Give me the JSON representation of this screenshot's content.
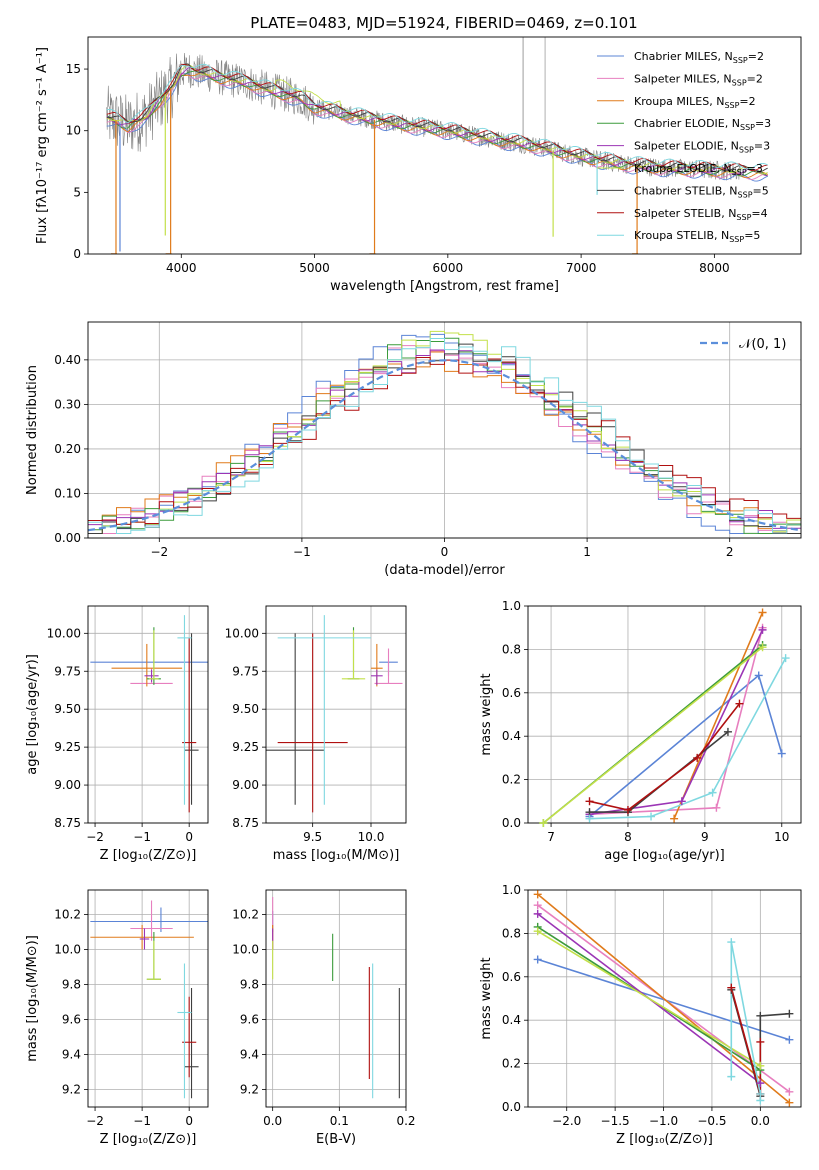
{
  "figure": {
    "title": "PLATE=0483, MJD=51924, FIBERID=0469, z=0.101"
  },
  "models": [
    {
      "name": "Chabrier MILES",
      "nssp": "2",
      "color": "#5b84d6"
    },
    {
      "name": "Salpeter MILES",
      "nssp": "2",
      "color": "#e77fbf"
    },
    {
      "name": "Kroupa MILES",
      "nssp": "2",
      "color": "#e07b1b"
    },
    {
      "name": "Chabrier ELODIE",
      "nssp": "3",
      "color": "#3c9b3c"
    },
    {
      "name": "Salpeter ELODIE",
      "nssp": "3",
      "color": "#9b35b5"
    },
    {
      "name": "Kroupa ELODIE",
      "nssp": "3",
      "color": "#c3e04a"
    },
    {
      "name": "Chabrier STELIB",
      "nssp": "5",
      "color": "#3f3f3f"
    },
    {
      "name": "Salpeter STELIB",
      "nssp": "4",
      "color": "#b01010"
    },
    {
      "name": "Kroupa STELIB",
      "nssp": "5",
      "color": "#7fd8e0"
    }
  ],
  "chart_data": [
    {
      "id": "spectrum",
      "type": "line",
      "title": "PLATE=0483, MJD=51924, FIBERID=0469, z=0.101",
      "xlabel": "wavelength [Angstrom, rest frame]",
      "ylabel": "Flux [fλ10⁻¹⁷ erg cm⁻² s⁻¹ A⁻¹]",
      "xlim": [
        3300,
        8650
      ],
      "ylim": [
        0,
        17.6
      ],
      "xticks": [
        4000,
        5000,
        6000,
        7000,
        8000
      ],
      "yticks": [
        0,
        5,
        10,
        15
      ],
      "legend": "upper right",
      "data_color": "#808080",
      "continuum": {
        "x": [
          3440,
          3500,
          3560,
          3600,
          3650,
          3700,
          3750,
          3800,
          3850,
          3900,
          3950,
          4000,
          4050,
          4100,
          4200,
          4300,
          4400,
          4500,
          4600,
          4700,
          4800,
          4900,
          5000,
          5200,
          5400,
          5600,
          5800,
          6000,
          6200,
          6400,
          6600,
          6800,
          7000,
          7200,
          7400,
          7600,
          7800,
          8000,
          8200,
          8400
        ],
        "y": [
          11.1,
          10.9,
          10.6,
          10.4,
          10.7,
          10.9,
          11.3,
          12.0,
          12.6,
          13.2,
          13.8,
          14.8,
          15.0,
          14.8,
          14.6,
          14.3,
          14.1,
          13.9,
          13.5,
          13.2,
          12.9,
          12.6,
          11.9,
          11.4,
          11.0,
          10.6,
          10.3,
          10.0,
          9.6,
          9.2,
          8.9,
          8.4,
          7.9,
          7.5,
          7.2,
          7.0,
          6.9,
          6.8,
          6.7,
          6.6
        ]
      },
      "dips": [
        {
          "model": 2,
          "x": 3510,
          "to": 0.0
        },
        {
          "model": 0,
          "x": 3540,
          "to": 0.2
        },
        {
          "model": 5,
          "x": 3880,
          "to": 1.5
        },
        {
          "model": 2,
          "x": 3920,
          "to": 0.0
        },
        {
          "model": 2,
          "x": 5450,
          "to": 0.0
        },
        {
          "model": 5,
          "x": 6790,
          "to": 1.4
        },
        {
          "model": 8,
          "x": 7120,
          "to": 4.8
        },
        {
          "model": 2,
          "x": 7420,
          "to": 0.0
        }
      ]
    },
    {
      "id": "residuals",
      "type": "line",
      "xlabel": "(data-model)/error",
      "ylabel": "Normed distribution",
      "xlim": [
        -2.5,
        2.5
      ],
      "ylim": [
        0,
        0.485
      ],
      "xticks": [
        -2,
        -1,
        0,
        1,
        2
      ],
      "yticks": [
        0.0,
        0.1,
        0.2,
        0.3,
        0.4
      ],
      "grid": true,
      "legend": "upper right",
      "gaussian": {
        "label": "𝒩(0, 1)",
        "mean": 0,
        "sigma": 1,
        "color": "#5b8fdb"
      },
      "bin_width": 0.1
    },
    {
      "id": "age-vs-Z",
      "type": "scatter",
      "xlabel": "Z [log₁₀(Z/Z⊙)]",
      "ylabel": "age  [log₁₀(age/yr)]",
      "xlim": [
        -2.15,
        0.4
      ],
      "ylim": [
        8.75,
        10.18
      ],
      "xticks": [
        -2,
        -1,
        0
      ],
      "yticks": [
        8.75,
        9.0,
        9.25,
        9.5,
        9.75,
        10.0
      ],
      "points": [
        {
          "model": 0,
          "x": -0.6,
          "y": 9.81,
          "xerr": 1.5,
          "ylo": 9.81,
          "yhi": 9.81
        },
        {
          "model": 1,
          "x": -0.8,
          "y": 9.67,
          "xerr": 0.45,
          "ylo": 9.67,
          "yhi": 9.77
        },
        {
          "model": 2,
          "x": -0.9,
          "y": 9.77,
          "xerr": 0.75,
          "ylo": 9.65,
          "yhi": 9.93
        },
        {
          "model": 3,
          "x": -0.75,
          "y": 9.7,
          "xerr": 0.15,
          "ylo": 9.66,
          "yhi": 10.04
        },
        {
          "model": 4,
          "x": -0.8,
          "y": 9.72,
          "xerr": 0.15,
          "ylo": 9.68,
          "yhi": 9.76
        },
        {
          "model": 5,
          "x": -0.75,
          "y": 9.7,
          "xerr": 0.1,
          "ylo": 9.7,
          "yhi": 10.02
        },
        {
          "model": 6,
          "x": 0.05,
          "y": 9.23,
          "xerr": 0.15,
          "ylo": 8.87,
          "yhi": 10.0
        },
        {
          "model": 7,
          "x": 0.0,
          "y": 9.28,
          "xerr": 0.15,
          "ylo": 8.82,
          "yhi": 9.97
        },
        {
          "model": 8,
          "x": -0.1,
          "y": 9.97,
          "xerr": 0.15,
          "ylo": 8.87,
          "yhi": 10.12
        }
      ]
    },
    {
      "id": "age-vs-mass",
      "type": "scatter",
      "xlabel": "mass [log₁₀(M/M⊙)]",
      "ylabel": "",
      "xlim": [
        9.1,
        10.3
      ],
      "ylim": [
        8.75,
        10.18
      ],
      "xticks": [
        9.5,
        10.0
      ],
      "yticks": [
        8.75,
        9.0,
        9.25,
        9.5,
        9.75,
        10.0
      ],
      "points": [
        {
          "model": 0,
          "x": 10.15,
          "y": 9.81,
          "xerr": 0.08,
          "ylo": 9.72,
          "yhi": 9.81
        },
        {
          "model": 1,
          "x": 10.15,
          "y": 9.67,
          "xerr": 0.12,
          "ylo": 9.67,
          "yhi": 9.9
        },
        {
          "model": 2,
          "x": 10.05,
          "y": 9.77,
          "xerr": 0.05,
          "ylo": 9.65,
          "yhi": 9.93
        },
        {
          "model": 3,
          "x": 9.85,
          "y": 9.7,
          "xerr": 0.05,
          "ylo": 9.7,
          "yhi": 10.04
        },
        {
          "model": 4,
          "x": 10.05,
          "y": 9.72,
          "xerr": 0.05,
          "ylo": 9.66,
          "yhi": 9.76
        },
        {
          "model": 5,
          "x": 9.85,
          "y": 9.7,
          "xerr": 0.1,
          "ylo": 9.7,
          "yhi": 10.02
        },
        {
          "model": 6,
          "x": 9.35,
          "y": 9.23,
          "xerr": 0.25,
          "ylo": 8.87,
          "yhi": 10.0
        },
        {
          "model": 7,
          "x": 9.5,
          "y": 9.28,
          "xerr": 0.3,
          "ylo": 8.82,
          "yhi": 10.0
        },
        {
          "model": 8,
          "x": 9.6,
          "y": 9.97,
          "xerr": 0.4,
          "ylo": 8.87,
          "yhi": 10.12
        }
      ]
    },
    {
      "id": "massweight-vs-age",
      "type": "line",
      "xlabel": "age  [log₁₀(age/yr)]",
      "ylabel": "mass weight",
      "xlim": [
        6.7,
        10.25
      ],
      "ylim": [
        0,
        1.0
      ],
      "xticks": [
        7,
        8,
        9,
        10
      ],
      "yticks": [
        0.0,
        0.2,
        0.4,
        0.6,
        0.8,
        1.0
      ],
      "grid": true,
      "series": [
        {
          "model": 0,
          "x": [
            7.5,
            9.7,
            10.0
          ],
          "y": [
            0.03,
            0.68,
            0.32
          ]
        },
        {
          "model": 1,
          "x": [
            7.5,
            9.15,
            9.75
          ],
          "y": [
            0.04,
            0.07,
            0.9
          ]
        },
        {
          "model": 2,
          "x": [
            8.6,
            9.75
          ],
          "y": [
            0.02,
            0.97
          ]
        },
        {
          "model": 3,
          "x": [
            6.9,
            9.75
          ],
          "y": [
            0.0,
            0.82
          ]
        },
        {
          "model": 4,
          "x": [
            7.5,
            8.7,
            9.75
          ],
          "y": [
            0.04,
            0.1,
            0.89
          ]
        },
        {
          "model": 5,
          "x": [
            6.9,
            9.75
          ],
          "y": [
            0.0,
            0.81
          ]
        },
        {
          "model": 6,
          "x": [
            7.5,
            8.0,
            9.3
          ],
          "y": [
            0.05,
            0.05,
            0.42
          ]
        },
        {
          "model": 7,
          "x": [
            7.5,
            8.0,
            8.9,
            9.45
          ],
          "y": [
            0.1,
            0.06,
            0.3,
            0.55
          ]
        },
        {
          "model": 8,
          "x": [
            7.5,
            8.3,
            9.1,
            10.05
          ],
          "y": [
            0.02,
            0.03,
            0.14,
            0.76
          ]
        }
      ]
    },
    {
      "id": "mass-vs-Z",
      "type": "scatter",
      "xlabel": "Z [log₁₀(Z/Z⊙)]",
      "ylabel": "mass [log₁₀(M/M⊙)]",
      "xlim": [
        -2.15,
        0.4
      ],
      "ylim": [
        9.1,
        10.34
      ],
      "xticks": [
        -2,
        -1,
        0
      ],
      "yticks": [
        9.2,
        9.4,
        9.6,
        9.8,
        10.0,
        10.2
      ],
      "points": [
        {
          "model": 0,
          "x": -0.6,
          "y": 10.16,
          "xerr": 1.5,
          "ylo": 10.1,
          "yhi": 10.24
        },
        {
          "model": 1,
          "x": -0.8,
          "y": 10.12,
          "xerr": 0.45,
          "ylo": 10.05,
          "yhi": 10.28
        },
        {
          "model": 2,
          "x": -1.0,
          "y": 10.07,
          "xerr": 1.1,
          "ylo": 10.0,
          "yhi": 10.14
        },
        {
          "model": 3,
          "x": -0.75,
          "y": 9.83,
          "xerr": 0.15,
          "ylo": 9.83,
          "yhi": 10.1
        },
        {
          "model": 4,
          "x": -0.95,
          "y": 10.06,
          "xerr": 0.1,
          "ylo": 10.0,
          "yhi": 10.12
        },
        {
          "model": 5,
          "x": -0.75,
          "y": 9.83,
          "xerr": 0.15,
          "ylo": 9.83,
          "yhi": 10.05
        },
        {
          "model": 6,
          "x": 0.05,
          "y": 9.33,
          "xerr": 0.15,
          "ylo": 9.15,
          "yhi": 9.78
        },
        {
          "model": 7,
          "x": 0.0,
          "y": 9.47,
          "xerr": 0.15,
          "ylo": 9.27,
          "yhi": 9.73
        },
        {
          "model": 8,
          "x": -0.1,
          "y": 9.64,
          "xerr": 0.15,
          "ylo": 9.15,
          "yhi": 9.92
        }
      ]
    },
    {
      "id": "mass-vs-EBV",
      "type": "scatter",
      "xlabel": "E(B-V)",
      "ylabel": "",
      "xlim": [
        -0.01,
        0.2
      ],
      "ylim": [
        9.1,
        10.34
      ],
      "xticks": [
        0.0,
        0.1,
        0.2
      ],
      "yticks": [
        9.2,
        9.4,
        9.6,
        9.8,
        10.0,
        10.2
      ],
      "points": [
        {
          "model": 0,
          "x": 0.0,
          "ylo": 10.1,
          "yhi": 10.22
        },
        {
          "model": 1,
          "x": 0.0,
          "ylo": 10.05,
          "yhi": 10.3
        },
        {
          "model": 2,
          "x": 0.0,
          "ylo": 10.0,
          "yhi": 10.14
        },
        {
          "model": 3,
          "x": 0.09,
          "ylo": 9.82,
          "yhi": 10.09
        },
        {
          "model": 4,
          "x": 0.0,
          "ylo": 10.0,
          "yhi": 10.12
        },
        {
          "model": 5,
          "x": 0.0,
          "ylo": 9.83,
          "yhi": 10.05
        },
        {
          "model": 6,
          "x": 0.19,
          "ylo": 9.15,
          "yhi": 9.78
        },
        {
          "model": 7,
          "x": 0.145,
          "ylo": 9.26,
          "yhi": 9.9
        },
        {
          "model": 8,
          "x": 0.15,
          "ylo": 9.15,
          "yhi": 9.92
        }
      ]
    },
    {
      "id": "massweight-vs-Z",
      "type": "line",
      "xlabel": "Z [log₁₀(Z/Z⊙)]",
      "ylabel": "mass weight",
      "xlim": [
        -2.4,
        0.42
      ],
      "ylim": [
        0,
        1.0
      ],
      "xticks": [
        -2.0,
        -1.5,
        -1.0,
        -0.5,
        0.0
      ],
      "yticks": [
        0.0,
        0.2,
        0.4,
        0.6,
        0.8,
        1.0
      ],
      "grid": true,
      "series": [
        {
          "model": 0,
          "x": [
            -2.3,
            0.3
          ],
          "y": [
            0.68,
            0.31
          ]
        },
        {
          "model": 1,
          "x": [
            -2.3,
            0.3
          ],
          "y": [
            0.93,
            0.07
          ]
        },
        {
          "model": 2,
          "x": [
            -2.3,
            0.3
          ],
          "y": [
            0.98,
            0.02
          ]
        },
        {
          "model": 3,
          "x": [
            -2.3,
            0.0
          ],
          "y": [
            0.83,
            0.17
          ]
        },
        {
          "model": 4,
          "x": [
            -2.3,
            0.0
          ],
          "y": [
            0.89,
            0.11
          ]
        },
        {
          "model": 5,
          "x": [
            -2.3,
            0.0
          ],
          "y": [
            0.81,
            0.19
          ]
        },
        {
          "model": 6,
          "x": [
            -0.3,
            0.0,
            0.0,
            0.3
          ],
          "y": [
            0.54,
            0.05,
            0.42,
            0.43
          ]
        },
        {
          "model": 7,
          "x": [
            -0.3,
            0.0,
            0.0
          ],
          "y": [
            0.55,
            0.06,
            0.3
          ]
        },
        {
          "model": 8,
          "x": [
            -0.3,
            -0.3,
            0.0,
            0.0
          ],
          "y": [
            0.14,
            0.76,
            0.06,
            0.03
          ]
        }
      ]
    }
  ]
}
